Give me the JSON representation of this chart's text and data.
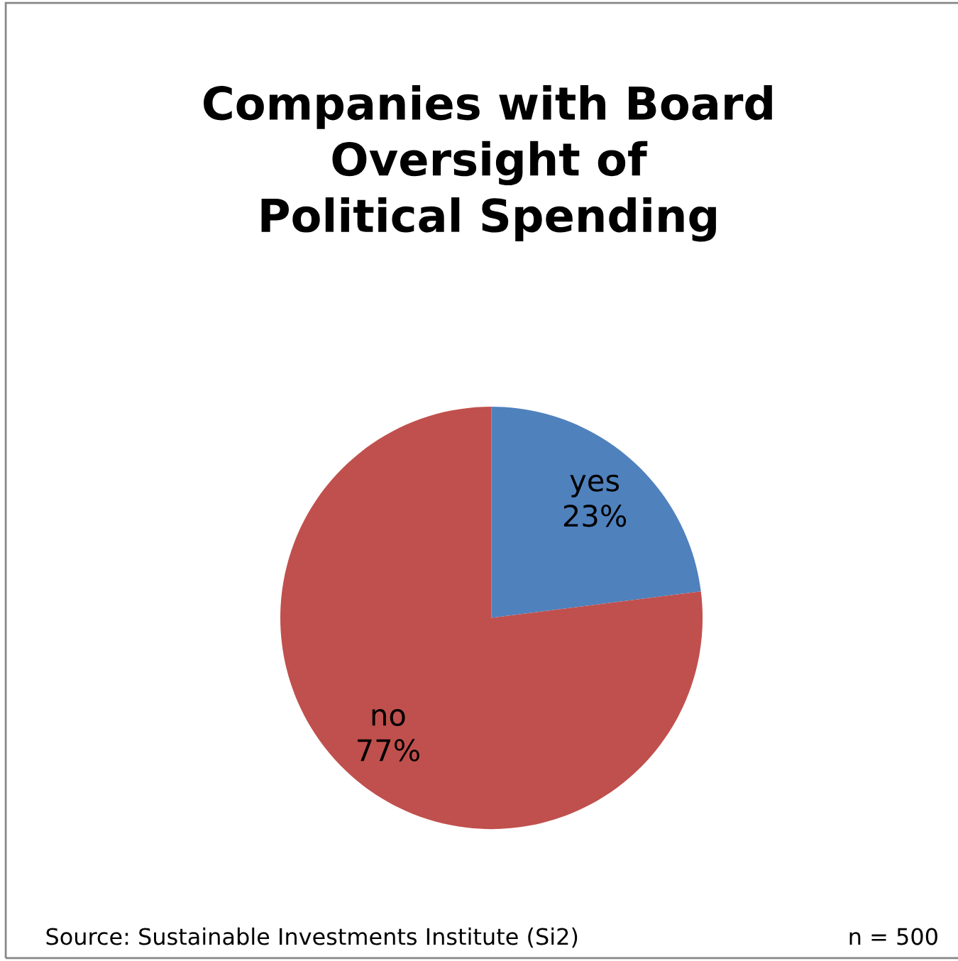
{
  "chart_data": {
    "type": "pie",
    "title": "Companies with Board\nOversight of\nPolitical Spending",
    "categories": [
      "yes",
      "no"
    ],
    "values": [
      23,
      77
    ],
    "colors": [
      "#4f81bd",
      "#c0504d"
    ],
    "value_labels": [
      "23%",
      "77%"
    ],
    "annotations": [
      "Source: Sustainable Investments Institute (Si2)",
      "n = 500"
    ]
  }
}
